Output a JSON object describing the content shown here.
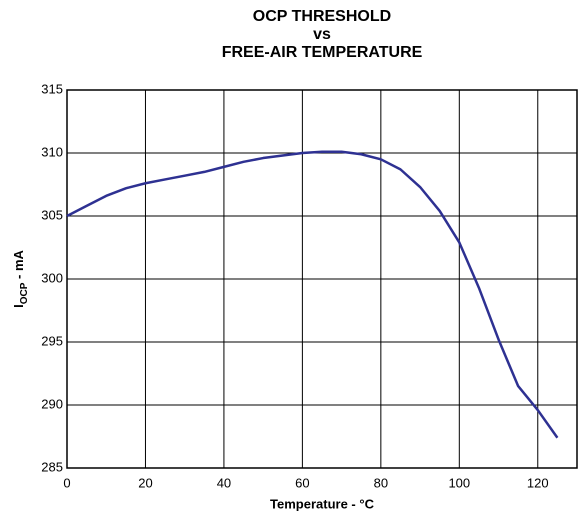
{
  "chart_data": {
    "type": "line",
    "title": [
      "OCP THRESHOLD",
      "vs",
      "FREE-AIR TEMPERATURE"
    ],
    "xlabel": "Temperature - °C",
    "ylabel": [
      "I",
      "OCP",
      " - mA"
    ],
    "x": [
      0,
      5,
      10,
      15,
      20,
      25,
      30,
      35,
      40,
      45,
      50,
      55,
      60,
      65,
      70,
      75,
      80,
      85,
      90,
      95,
      100,
      105,
      110,
      115,
      120,
      125
    ],
    "series": [
      {
        "color": "#2e3192",
        "values": [
          305,
          305.8,
          306.6,
          307.2,
          307.6,
          307.9,
          308.2,
          308.5,
          308.9,
          309.3,
          309.6,
          309.8,
          310.0,
          310.1,
          310.1,
          309.9,
          309.5,
          308.7,
          307.3,
          305.4,
          302.9,
          299.3,
          295.2,
          291.5,
          289.6,
          287.4
        ]
      }
    ],
    "xlim": [
      0,
      130
    ],
    "ylim": [
      285,
      315
    ],
    "xticks": [
      0,
      20,
      40,
      60,
      80,
      100,
      120
    ],
    "yticks": [
      285,
      290,
      295,
      300,
      305,
      310,
      315
    ],
    "grid": true
  }
}
